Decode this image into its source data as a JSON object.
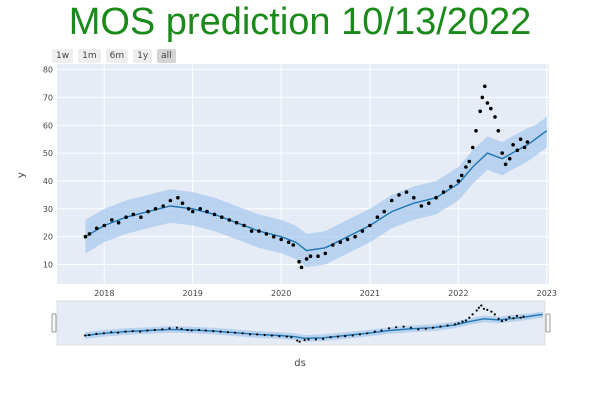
{
  "title": "MOS prediction 10/13/2022",
  "range_selector": {
    "buttons": [
      "1w",
      "1m",
      "6m",
      "1y",
      "all"
    ],
    "active": "all"
  },
  "colors": {
    "title": "#1a8a1a",
    "plot_bg": "#e5ecf6",
    "grid": "#ffffff",
    "band": "#a6c8ec",
    "forecast_line": "#1f77b4",
    "points": "#000000",
    "axis_text": "#444444"
  },
  "chart_data": {
    "type": "line",
    "xlabel": "ds",
    "ylabel": "y",
    "xlim": [
      "2017-06-20",
      "2023-01-10"
    ],
    "ylim": [
      3,
      82
    ],
    "x_ticks": [
      "2018",
      "2019",
      "2020",
      "2021",
      "2022",
      "2023"
    ],
    "y_ticks": [
      10,
      20,
      30,
      40,
      50,
      60,
      70,
      80
    ],
    "grid": true,
    "legend": "none",
    "series": [
      {
        "role": "actual",
        "style": "points",
        "x": [
          "2017-10-15",
          "2017-11-01",
          "2017-12-01",
          "2018-01-01",
          "2018-02-01",
          "2018-03-01",
          "2018-04-01",
          "2018-05-01",
          "2018-06-01",
          "2018-07-01",
          "2018-08-01",
          "2018-09-01",
          "2018-10-01",
          "2018-11-01",
          "2018-11-20",
          "2018-12-15",
          "2019-01-01",
          "2019-02-01",
          "2019-03-01",
          "2019-04-01",
          "2019-05-01",
          "2019-06-01",
          "2019-07-01",
          "2019-08-01",
          "2019-09-01",
          "2019-10-01",
          "2019-11-01",
          "2019-12-01",
          "2020-01-01",
          "2020-02-01",
          "2020-02-20",
          "2020-03-15",
          "2020-03-25",
          "2020-04-15",
          "2020-05-01",
          "2020-06-01",
          "2020-07-01",
          "2020-08-01",
          "2020-09-01",
          "2020-10-01",
          "2020-11-01",
          "2020-12-01",
          "2021-01-01",
          "2021-02-01",
          "2021-03-01",
          "2021-04-01",
          "2021-05-01",
          "2021-06-01",
          "2021-07-01",
          "2021-08-01",
          "2021-09-01",
          "2021-10-01",
          "2021-11-01",
          "2021-12-01",
          "2022-01-01",
          "2022-01-15",
          "2022-02-01",
          "2022-02-15",
          "2022-03-01",
          "2022-03-15",
          "2022-04-01",
          "2022-04-10",
          "2022-04-20",
          "2022-05-01",
          "2022-05-15",
          "2022-06-01",
          "2022-06-15",
          "2022-07-01",
          "2022-07-15",
          "2022-08-01",
          "2022-08-15",
          "2022-09-01",
          "2022-09-15",
          "2022-10-01",
          "2022-10-13"
        ],
        "values": [
          20,
          21,
          23,
          24,
          26,
          25,
          27,
          28,
          27,
          29,
          30,
          31,
          33,
          34,
          32,
          30,
          29,
          30,
          29,
          28,
          27,
          26,
          25,
          24,
          22,
          22,
          21,
          20,
          19,
          18,
          17,
          11,
          9,
          12,
          13,
          13,
          14,
          17,
          18,
          19,
          20,
          22,
          24,
          27,
          29,
          33,
          35,
          36,
          34,
          31,
          32,
          34,
          36,
          38,
          40,
          42,
          45,
          47,
          52,
          58,
          65,
          70,
          74,
          68,
          66,
          63,
          58,
          50,
          46,
          48,
          53,
          51,
          55,
          52,
          54
        ]
      },
      {
        "role": "forecast",
        "style": "line",
        "x": [
          "2017-10-15",
          "2018-01-01",
          "2018-04-01",
          "2018-07-01",
          "2018-10-01",
          "2019-01-01",
          "2019-04-01",
          "2019-07-01",
          "2019-10-01",
          "2020-01-01",
          "2020-03-01",
          "2020-04-15",
          "2020-07-01",
          "2020-10-01",
          "2021-01-01",
          "2021-04-01",
          "2021-07-01",
          "2021-10-01",
          "2022-01-01",
          "2022-03-01",
          "2022-05-01",
          "2022-07-01",
          "2022-09-01",
          "2022-10-13",
          "2022-11-15",
          "2022-12-15",
          "2023-01-01"
        ],
        "values": [
          20,
          24,
          27,
          29,
          31,
          30,
          28,
          25,
          22,
          20,
          18,
          15,
          16,
          20,
          24,
          29,
          32,
          34,
          39,
          45,
          50,
          48,
          51,
          53,
          55,
          57,
          58
        ]
      },
      {
        "role": "band_upper",
        "style": "area",
        "x": [
          "2017-10-15",
          "2018-01-01",
          "2018-04-01",
          "2018-07-01",
          "2018-10-01",
          "2019-01-01",
          "2019-04-01",
          "2019-07-01",
          "2019-10-01",
          "2020-01-01",
          "2020-03-01",
          "2020-04-15",
          "2020-07-01",
          "2020-10-01",
          "2021-01-01",
          "2021-04-01",
          "2021-07-01",
          "2021-10-01",
          "2022-01-01",
          "2022-03-01",
          "2022-05-01",
          "2022-07-01",
          "2022-09-01",
          "2022-10-13",
          "2022-11-15",
          "2022-12-15",
          "2023-01-01"
        ],
        "values": [
          26,
          30,
          33,
          35,
          37,
          36,
          34,
          31,
          28,
          26,
          24,
          21,
          22,
          26,
          30,
          35,
          38,
          40,
          45,
          51,
          56,
          54,
          57,
          59,
          60,
          62,
          63
        ]
      },
      {
        "role": "band_lower",
        "style": "area",
        "x": [
          "2017-10-15",
          "2018-01-01",
          "2018-04-01",
          "2018-07-01",
          "2018-10-01",
          "2019-01-01",
          "2019-04-01",
          "2019-07-01",
          "2019-10-01",
          "2020-01-01",
          "2020-03-01",
          "2020-04-15",
          "2020-07-01",
          "2020-10-01",
          "2021-01-01",
          "2021-04-01",
          "2021-07-01",
          "2021-10-01",
          "2022-01-01",
          "2022-03-01",
          "2022-05-01",
          "2022-07-01",
          "2022-09-01",
          "2022-10-13",
          "2022-11-15",
          "2022-12-15",
          "2023-01-01"
        ],
        "values": [
          14,
          18,
          21,
          23,
          25,
          24,
          22,
          19,
          16,
          14,
          12,
          9,
          10,
          14,
          18,
          23,
          26,
          28,
          33,
          39,
          44,
          42,
          45,
          47,
          49,
          51,
          52
        ]
      }
    ]
  }
}
